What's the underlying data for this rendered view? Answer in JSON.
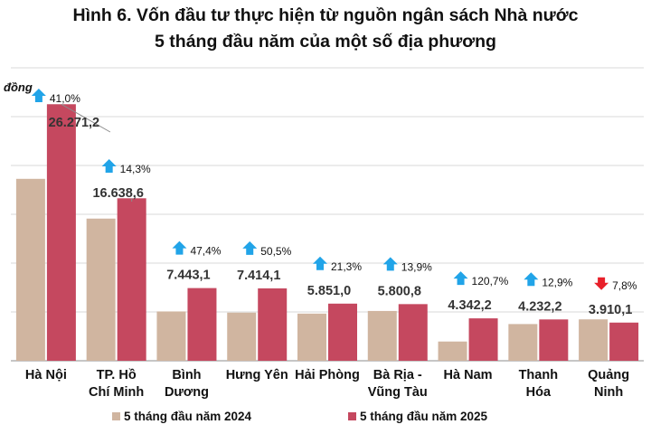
{
  "colors": {
    "series_2024": "#d0b5a0",
    "series_2025": "#c5485f",
    "arrow_up": "#21a4e8",
    "arrow_down": "#e8202a",
    "leader_line": "#8c8c8c"
  },
  "chart_data": {
    "type": "bar",
    "title": "Hình 6. Vốn đầu tư thực hiện từ nguồn ngân sách Nhà nước",
    "subtitle": "5 tháng đầu năm của một số địa phương",
    "ylabel": "đồng",
    "ylim": [
      0,
      30000
    ],
    "ytick_step": 5000,
    "grid": true,
    "legend_position": "bottom",
    "categories": [
      [
        "Hà Nội"
      ],
      [
        "TP. Hồ",
        "Chí Minh"
      ],
      [
        "Bình",
        "Dương"
      ],
      [
        "Hưng Yên"
      ],
      [
        "Hải Phòng"
      ],
      [
        "Bà Rịa -",
        "Vũng Tàu"
      ],
      [
        "Hà Nam"
      ],
      [
        "Thanh",
        "Hóa"
      ],
      [
        "Quảng",
        "Ninh"
      ]
    ],
    "series": [
      {
        "name": "5 tháng đầu năm 2024",
        "values": [
          18630,
          14560,
          5050,
          4930,
          4830,
          5100,
          1970,
          3760,
          4240
        ]
      },
      {
        "name": "5 tháng đầu năm 2025",
        "values": [
          26271.2,
          16638.6,
          7443.1,
          7414.1,
          5851.0,
          5800.8,
          4342.2,
          4232.2,
          3910.1
        ]
      }
    ],
    "data_labels": [
      "26.271,2",
      "16.638,6",
      "7.443,1",
      "7.414,1",
      "5.851,0",
      "5.800,8",
      "4.342,2",
      "4.232,2",
      "3.910,1"
    ],
    "changes": [
      {
        "text": "41,0%",
        "direction": "up"
      },
      {
        "text": "14,3%",
        "direction": "up"
      },
      {
        "text": "47,4%",
        "direction": "up"
      },
      {
        "text": "50,5%",
        "direction": "up"
      },
      {
        "text": "21,3%",
        "direction": "up"
      },
      {
        "text": "13,9%",
        "direction": "up"
      },
      {
        "text": "120,7%",
        "direction": "up"
      },
      {
        "text": "12,9%",
        "direction": "up"
      },
      {
        "text": "7,8%",
        "direction": "down"
      }
    ]
  }
}
